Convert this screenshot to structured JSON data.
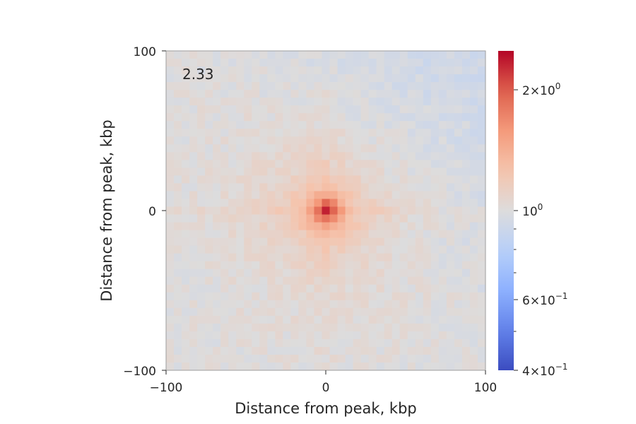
{
  "chart_data": {
    "type": "heatmap",
    "title": "",
    "annotation": "2.33",
    "xlabel": "Distance from peak, kbp",
    "ylabel": "Distance from peak, kbp",
    "xlim": [
      -100,
      100
    ],
    "ylim": [
      -100,
      100
    ],
    "xticks": [
      -100,
      0,
      100
    ],
    "yticks": [
      -100,
      0,
      100
    ],
    "xtick_labels": [
      "−100",
      "0",
      "100"
    ],
    "ytick_labels": [
      "−100",
      "0",
      "100"
    ],
    "bins": 41,
    "center_value": 2.33,
    "colormap": "coolwarm",
    "color_scale": "log",
    "colorbar": {
      "vmin": 0.4,
      "vmax": 2.5,
      "ticks": [
        {
          "value": 2.0,
          "mantissa": "2",
          "exponent": "0"
        },
        {
          "value": 1.0,
          "mantissa": "",
          "exponent": "0"
        },
        {
          "value": 0.6,
          "mantissa": "6",
          "exponent": "−1"
        },
        {
          "value": 0.4,
          "mantissa": "4",
          "exponent": "−1"
        }
      ],
      "minor_ticks": [
        0.5,
        0.7,
        0.8,
        0.9
      ]
    },
    "colors": {
      "low": "#3b4cc0",
      "mid": "#dddcdc",
      "high": "#b40426",
      "frame": "#9e9e9e"
    }
  }
}
